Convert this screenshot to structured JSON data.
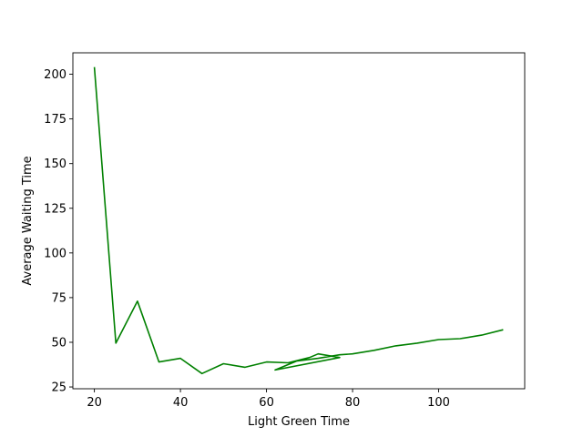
{
  "chart_data": {
    "type": "line",
    "title": "",
    "xlabel": "Light Green Time",
    "ylabel": "Average Waiting Time",
    "xlim": [
      15,
      120
    ],
    "ylim": [
      24,
      212
    ],
    "xticks": [
      20,
      40,
      60,
      80,
      100
    ],
    "yticks": [
      25,
      50,
      75,
      100,
      125,
      150,
      175,
      200
    ],
    "grid": false,
    "legend": "none",
    "series": [
      {
        "color": "#008000",
        "x": [
          20,
          25,
          30,
          35,
          40,
          45,
          50,
          55,
          60,
          65,
          70,
          72,
          77,
          62,
          67,
          72,
          77,
          80,
          85,
          90,
          95,
          100,
          105,
          110,
          115
        ],
        "y": [
          204,
          49.5,
          73,
          39,
          41,
          32.5,
          38,
          36,
          39,
          38.5,
          41.5,
          43.5,
          41.5,
          34.5,
          39.5,
          41,
          43,
          43.5,
          45.5,
          48,
          49.5,
          51.5,
          52,
          54,
          57
        ]
      }
    ]
  }
}
